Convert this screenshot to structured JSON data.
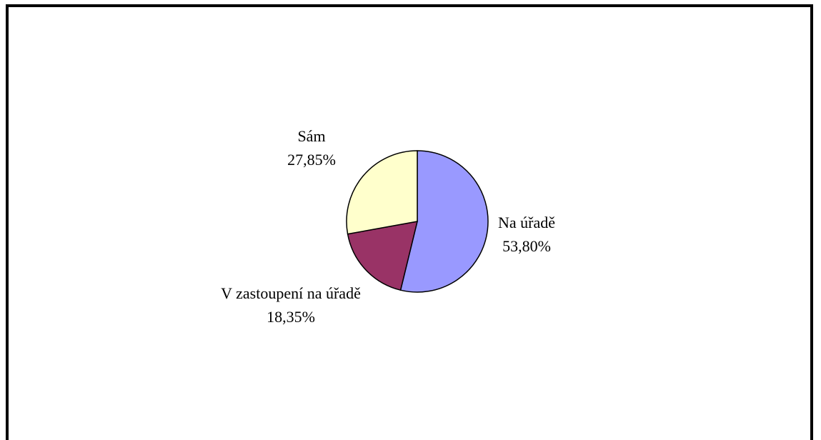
{
  "chart_data": {
    "type": "pie",
    "categories": [
      "Na úřadě",
      "V zastoupení na úřadě",
      "Sám"
    ],
    "values": [
      53.8,
      18.35,
      27.85
    ],
    "value_labels": [
      "53,80%",
      "18,35%",
      "27,85%"
    ],
    "colors": [
      "#9999ff",
      "#993366",
      "#ffffcc"
    ]
  }
}
